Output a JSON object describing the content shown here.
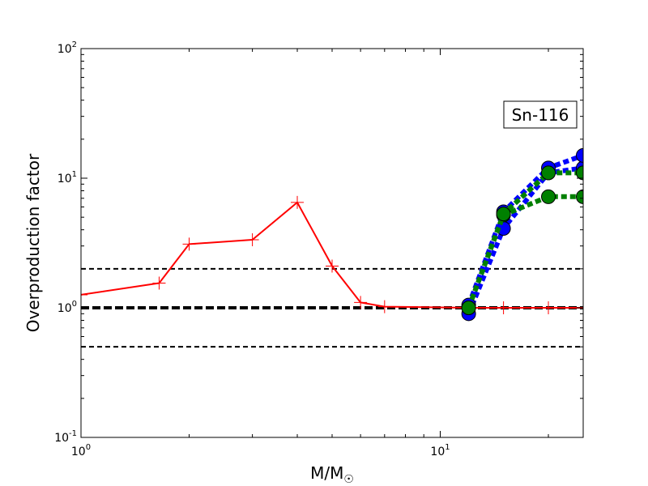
{
  "chart_data": {
    "type": "line",
    "xscale": "log",
    "yscale": "log",
    "xlim": [
      1,
      25
    ],
    "ylim": [
      0.1,
      100
    ],
    "xlabel": "M/M☉",
    "ylabel": "Overproduction factor",
    "grid": false,
    "annotation": "Sn-116",
    "annotation_position": "top-right",
    "x_ticks": [
      {
        "value": 1,
        "base": "10",
        "exp": "0"
      },
      {
        "value": 10,
        "base": "10",
        "exp": "1"
      }
    ],
    "y_ticks": [
      {
        "value": 0.1,
        "base": "10",
        "exp": "-1"
      },
      {
        "value": 1,
        "base": "10",
        "exp": "0"
      },
      {
        "value": 10,
        "base": "10",
        "exp": "1"
      },
      {
        "value": 100,
        "base": "10",
        "exp": "2"
      }
    ],
    "reference_lines": [
      {
        "y": 2,
        "style": "dashed",
        "color": "#000000",
        "width": 2
      },
      {
        "y": 1,
        "style": "dashed",
        "color": "#000000",
        "width": 4
      },
      {
        "y": 0.5,
        "style": "dashed",
        "color": "#000000",
        "width": 2
      }
    ],
    "series": [
      {
        "color": "#ff0000",
        "linestyle": "solid",
        "marker": "plus",
        "width": 2,
        "x": [
          1.0,
          1.65,
          2.0,
          3.0,
          4.0,
          5.0,
          6.0,
          7.0,
          12.0,
          15.0,
          20.0,
          25.0
        ],
        "y": [
          1.26,
          1.55,
          3.1,
          3.35,
          6.5,
          2.1,
          1.1,
          1.02,
          1.0,
          1.0,
          1.0,
          1.0
        ]
      },
      {
        "color": "#0000ff",
        "linestyle": "dotted",
        "marker": "circle",
        "width": 6,
        "x": [
          12.0,
          15.0,
          20.0,
          25.0
        ],
        "y": [
          0.9,
          4.1,
          11.0,
          12.0
        ]
      },
      {
        "color": "#0000ff",
        "linestyle": "dotted",
        "marker": "circle",
        "width": 6,
        "x": [
          12.0,
          15.0,
          20.0,
          25.0
        ],
        "y": [
          1.05,
          5.5,
          12.0,
          15.0
        ]
      },
      {
        "color": "#008000",
        "linestyle": "dotted",
        "marker": "circle",
        "width": 6,
        "x": [
          12.0,
          15.0,
          20.0,
          25.0
        ],
        "y": [
          1.0,
          5.2,
          7.2,
          7.2
        ]
      },
      {
        "color": "#008000",
        "linestyle": "dotted",
        "marker": "circle",
        "width": 6,
        "x": [
          12.0,
          15.0,
          20.0,
          25.0
        ],
        "y": [
          1.0,
          5.3,
          11.0,
          11.0
        ]
      }
    ]
  }
}
